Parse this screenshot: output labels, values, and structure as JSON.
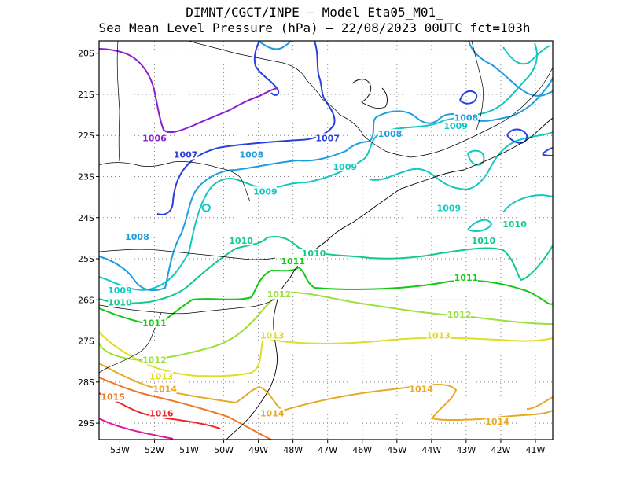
{
  "title": {
    "line1": "DIMNT/CGCT/INPE —  Model Eta05_M01_",
    "line2": "Sea Mean Level Pressure (hPa) — 22/08/2023 00UTC fct=103h"
  },
  "map": {
    "lon_range": [
      -53.6,
      -40.5
    ],
    "lat_range": [
      -29.4,
      -19.7
    ],
    "lon_ticks": [
      "53W",
      "52W",
      "51W",
      "50W",
      "49W",
      "48W",
      "47W",
      "46W",
      "45W",
      "44W",
      "43W",
      "42W",
      "41W"
    ],
    "lat_ticks": [
      "20S",
      "21S",
      "22S",
      "23S",
      "24S",
      "25S",
      "26S",
      "27S",
      "28S",
      "29S"
    ],
    "grid": true
  },
  "contours": [
    {
      "level": "1006",
      "color": "#8a1fd0",
      "labels": [
        {
          "lon": -52.0,
          "lat": -22.1
        }
      ]
    },
    {
      "level": "1007",
      "color": "#2a3fe0",
      "labels": [
        {
          "lon": -51.1,
          "lat": -22.5
        },
        {
          "lon": -47.0,
          "lat": -22.1
        }
      ]
    },
    {
      "level": "1008",
      "color": "#1e9de0",
      "labels": [
        {
          "lon": -49.2,
          "lat": -22.5
        },
        {
          "lon": -45.2,
          "lat": -22.0
        },
        {
          "lon": -43.0,
          "lat": -21.6
        },
        {
          "lon": -52.5,
          "lat": -24.5
        }
      ]
    },
    {
      "level": "1009",
      "color": "#14c8c0",
      "labels": [
        {
          "lon": -48.8,
          "lat": -23.4
        },
        {
          "lon": -46.5,
          "lat": -22.8
        },
        {
          "lon": -43.3,
          "lat": -21.8
        },
        {
          "lon": -43.5,
          "lat": -23.8
        },
        {
          "lon": -53.0,
          "lat": -25.8
        }
      ]
    },
    {
      "level": "1010",
      "color": "#14c890",
      "labels": [
        {
          "lon": -49.5,
          "lat": -24.6
        },
        {
          "lon": -47.4,
          "lat": -24.9
        },
        {
          "lon": -41.6,
          "lat": -24.2
        },
        {
          "lon": -42.5,
          "lat": -24.6
        },
        {
          "lon": -53.0,
          "lat": -26.1
        }
      ]
    },
    {
      "level": "1011",
      "color": "#14c814",
      "labels": [
        {
          "lon": -48.0,
          "lat": -25.1
        },
        {
          "lon": -43.0,
          "lat": -25.5
        },
        {
          "lon": -52.0,
          "lat": -26.6
        }
      ]
    },
    {
      "level": "1012",
      "color": "#9be03c",
      "labels": [
        {
          "lon": -48.4,
          "lat": -25.9
        },
        {
          "lon": -43.2,
          "lat": -26.4
        },
        {
          "lon": -52.0,
          "lat": -27.5
        }
      ]
    },
    {
      "level": "1013",
      "color": "#e0dc28",
      "labels": [
        {
          "lon": -48.6,
          "lat": -26.9
        },
        {
          "lon": -43.8,
          "lat": -26.9
        },
        {
          "lon": -51.8,
          "lat": -27.9
        }
      ]
    },
    {
      "level": "1014",
      "color": "#e6aa28",
      "labels": [
        {
          "lon": -51.7,
          "lat": -28.2
        },
        {
          "lon": -48.6,
          "lat": -28.8
        },
        {
          "lon": -44.3,
          "lat": -28.2
        },
        {
          "lon": -42.1,
          "lat": -29.0
        }
      ]
    },
    {
      "level": "1015",
      "color": "#ee7828",
      "labels": [
        {
          "lon": -53.2,
          "lat": -28.4
        }
      ]
    },
    {
      "level": "1016",
      "color": "#ee2828",
      "labels": [
        {
          "lon": -51.8,
          "lat": -28.8
        }
      ]
    }
  ]
}
